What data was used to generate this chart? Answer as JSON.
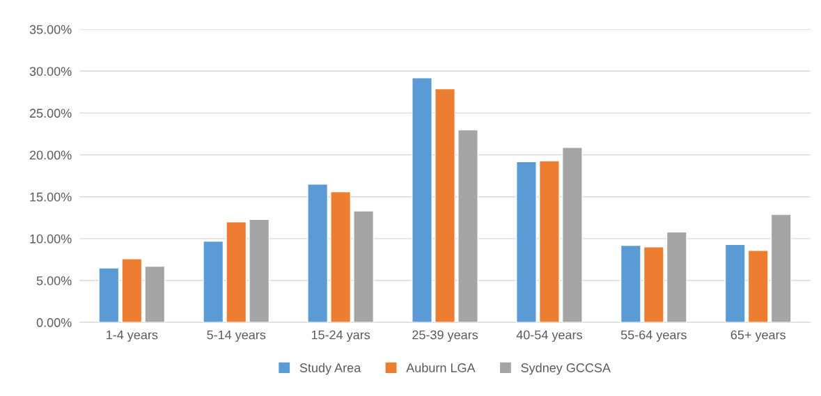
{
  "chart_data": {
    "type": "bar",
    "categories": [
      "1-4 years",
      "5-14 years",
      "15-24 yars",
      "25-39 years",
      "40-54 years",
      "55-64 years",
      "65+ years"
    ],
    "series": [
      {
        "name": "Study Area",
        "color": "#5b9bd5",
        "values": [
          6.5,
          9.7,
          16.5,
          29.2,
          19.2,
          9.2,
          9.3
        ]
      },
      {
        "name": "Auburn LGA",
        "color": "#ed7d31",
        "values": [
          7.6,
          12.0,
          15.6,
          27.9,
          19.3,
          9.0,
          8.6
        ]
      },
      {
        "name": "Sydney GCCSA",
        "color": "#a5a5a5",
        "values": [
          6.7,
          12.3,
          13.3,
          23.0,
          20.9,
          10.8,
          12.9
        ]
      }
    ],
    "ylim": [
      0,
      35
    ],
    "yticks": [
      {
        "value": 0,
        "label": "0.00%"
      },
      {
        "value": 5,
        "label": "5.00%"
      },
      {
        "value": 10,
        "label": "10.00%"
      },
      {
        "value": 15,
        "label": "15.00%"
      },
      {
        "value": 20,
        "label": "20.00%"
      },
      {
        "value": 25,
        "label": "25.00%"
      },
      {
        "value": 30,
        "label": "30.00%"
      },
      {
        "value": 35,
        "label": "35.00%"
      }
    ],
    "grid": "y",
    "legend": "bottom"
  }
}
